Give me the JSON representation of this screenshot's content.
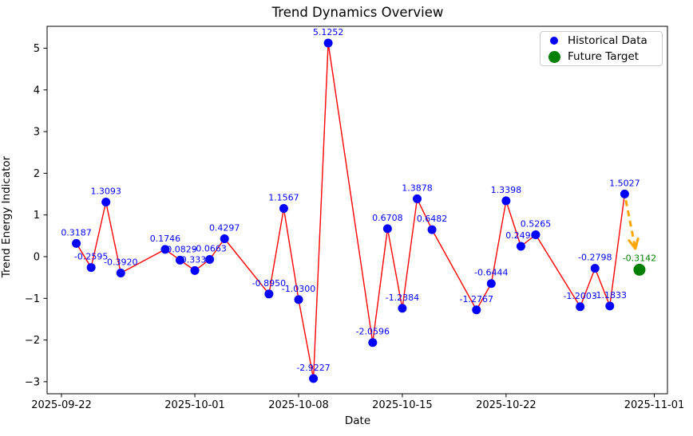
{
  "title": "Trend Dynamics Overview",
  "axes": {
    "xlabel": "Date",
    "ylabel": "Trend Energy Indicator"
  },
  "legend": {
    "items": [
      {
        "label": "Historical Data",
        "marker": "blue-dot",
        "color": "#0000ff"
      },
      {
        "label": "Future Target",
        "marker": "green-dot",
        "color": "#008000"
      }
    ]
  },
  "colors": {
    "line": "#ff0000",
    "historical_marker": "#0000ff",
    "historical_label": "#0000ff",
    "future_marker": "#008000",
    "future_label": "#008000",
    "arrow": "#ffa500",
    "spine": "#000000",
    "tick_text": "#000000"
  },
  "chart_data": {
    "type": "line",
    "title": "Trend Dynamics Overview",
    "xlabel": "Date",
    "ylabel": "Trend Energy Indicator",
    "grid": false,
    "legend_position": "upper right",
    "x_tick_labels": [
      "2025-09-22",
      "2025-10-01",
      "2025-10-08",
      "2025-10-15",
      "2025-10-22",
      "2025-11-01"
    ],
    "y_ticks": [
      -3,
      -2,
      -1,
      0,
      1,
      2,
      3,
      4,
      5
    ],
    "y_tick_labels": [
      "−3",
      "−2",
      "−1",
      "0",
      "1",
      "2",
      "3",
      "4",
      "5"
    ],
    "ylim": [
      -3.32,
      5.53
    ],
    "xlim": [
      "2025-09-21",
      "2025-11-02"
    ],
    "series": [
      {
        "name": "Historical Data",
        "style": "red line with blue markers and blue value labels",
        "points": [
          {
            "date": "2025-09-23",
            "value": 0.3187,
            "label": "0.3187"
          },
          {
            "date": "2025-09-24",
            "value": -0.2595,
            "label": "-0.2595"
          },
          {
            "date": "2025-09-25",
            "value": 1.3093,
            "label": "1.3093"
          },
          {
            "date": "2025-09-26",
            "value": -0.392,
            "label": "-0.3920"
          },
          {
            "date": "2025-09-29",
            "value": 0.1746,
            "label": "0.1746"
          },
          {
            "date": "2025-09-30",
            "value": -0.0829,
            "label": "-0.0829"
          },
          {
            "date": "2025-10-01",
            "value": -0.333,
            "label": "-0.3330"
          },
          {
            "date": "2025-10-02",
            "value": -0.0663,
            "label": "-0.0663"
          },
          {
            "date": "2025-10-03",
            "value": 0.4297,
            "label": "0.4297"
          },
          {
            "date": "2025-10-06",
            "value": -0.895,
            "label": "-0.8950"
          },
          {
            "date": "2025-10-07",
            "value": 1.1567,
            "label": "1.1567"
          },
          {
            "date": "2025-10-08",
            "value": -1.03,
            "label": "-1.0300"
          },
          {
            "date": "2025-10-09",
            "value": -2.9227,
            "label": "-2.9227"
          },
          {
            "date": "2025-10-10",
            "value": 5.1252,
            "label": "5.1252"
          },
          {
            "date": "2025-10-13",
            "value": -2.0596,
            "label": "-2.0596"
          },
          {
            "date": "2025-10-14",
            "value": 0.6708,
            "label": "0.6708"
          },
          {
            "date": "2025-10-15",
            "value": -1.2384,
            "label": "-1.2384"
          },
          {
            "date": "2025-10-16",
            "value": 1.3878,
            "label": "1.3878"
          },
          {
            "date": "2025-10-17",
            "value": 0.6482,
            "label": "0.6482"
          },
          {
            "date": "2025-10-20",
            "value": -1.2767,
            "label": "-1.2767"
          },
          {
            "date": "2025-10-21",
            "value": -0.6444,
            "label": "-0.6444"
          },
          {
            "date": "2025-10-22",
            "value": 1.3398,
            "label": "1.3398"
          },
          {
            "date": "2025-10-23",
            "value": 0.249,
            "label": "0.2490"
          },
          {
            "date": "2025-10-24",
            "value": 0.5265,
            "label": "0.5265"
          },
          {
            "date": "2025-10-27",
            "value": -1.2003,
            "label": "-1.2003"
          },
          {
            "date": "2025-10-28",
            "value": -0.2798,
            "label": "-0.2798"
          },
          {
            "date": "2025-10-29",
            "value": -1.1833,
            "label": "-1.1833"
          },
          {
            "date": "2025-10-30",
            "value": 1.5027,
            "label": "1.5027"
          }
        ]
      },
      {
        "name": "Future Target",
        "style": "single large green marker with green value label",
        "points": [
          {
            "date": "2025-10-31",
            "value": -0.3142,
            "label": "-0.3142"
          }
        ]
      }
    ],
    "annotation_arrow": {
      "from_date": "2025-10-30",
      "from_value": 1.5027,
      "to_date": "2025-10-31",
      "to_value": -0.3142,
      "color": "#ffa500",
      "style": "dashed"
    }
  }
}
